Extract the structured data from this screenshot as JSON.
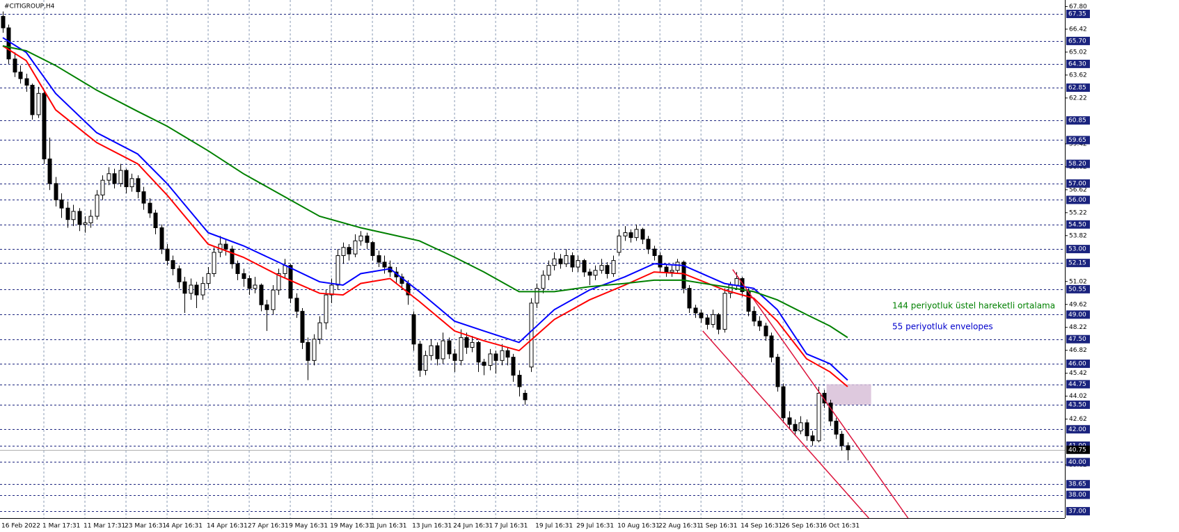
{
  "chart_data": {
    "type": "candlestick",
    "title": "#CITIGROUP,H4",
    "ylim": [
      36.58,
      68.2
    ],
    "yticks": [
      {
        "value": 67.8,
        "label": "67.80"
      },
      {
        "value": 66.42,
        "label": "66.42"
      },
      {
        "value": 65.02,
        "label": "65.02"
      },
      {
        "value": 63.62,
        "label": "63.62"
      },
      {
        "value": 62.22,
        "label": "62.22"
      },
      {
        "value": 59.42,
        "label": "59.42"
      },
      {
        "value": 58.02,
        "label": "58.02"
      },
      {
        "value": 56.62,
        "label": "56.62"
      },
      {
        "value": 55.22,
        "label": "55.22"
      },
      {
        "value": 53.82,
        "label": "53.82"
      },
      {
        "value": 51.02,
        "label": "51.02"
      },
      {
        "value": 49.62,
        "label": "49.62"
      },
      {
        "value": 48.22,
        "label": "48.22"
      },
      {
        "value": 46.82,
        "label": "46.82"
      },
      {
        "value": 45.42,
        "label": "45.42"
      },
      {
        "value": 44.02,
        "label": "44.02"
      },
      {
        "value": 42.62,
        "label": "42.62"
      },
      {
        "value": 39.82,
        "label": "39.82"
      }
    ],
    "levels": [
      {
        "value": 67.35,
        "label": "67.35"
      },
      {
        "value": 65.7,
        "label": "65.70"
      },
      {
        "value": 64.3,
        "label": "64.30"
      },
      {
        "value": 62.85,
        "label": "62.85"
      },
      {
        "value": 60.85,
        "label": "60.85"
      },
      {
        "value": 59.65,
        "label": "59.65"
      },
      {
        "value": 58.2,
        "label": "58.20"
      },
      {
        "value": 57.0,
        "label": "57.00"
      },
      {
        "value": 56.0,
        "label": "56.00"
      },
      {
        "value": 54.5,
        "label": "54.50"
      },
      {
        "value": 53.0,
        "label": "53.00"
      },
      {
        "value": 52.15,
        "label": "52.15"
      },
      {
        "value": 50.55,
        "label": "50.55"
      },
      {
        "value": 49.0,
        "label": "49.00"
      },
      {
        "value": 47.5,
        "label": "47.50"
      },
      {
        "value": 46.0,
        "label": "46.00"
      },
      {
        "value": 44.75,
        "label": "44.75"
      },
      {
        "value": 43.5,
        "label": "43.50"
      },
      {
        "value": 42.0,
        "label": "42.00"
      },
      {
        "value": 41.0,
        "label": "41.00"
      },
      {
        "value": 40.0,
        "label": "40.00"
      },
      {
        "value": 38.65,
        "label": "38.65"
      },
      {
        "value": 38.0,
        "label": "38.00"
      },
      {
        "value": 37.0,
        "label": "37.00"
      }
    ],
    "current_price": {
      "value": 40.75,
      "label": "40.75"
    },
    "grid": true,
    "categories": [
      "16 Feb 2022",
      null,
      null,
      null,
      null,
      null,
      null,
      "1 Mar 17:31",
      null,
      null,
      null,
      null,
      null,
      null,
      "11 Mar 17:31",
      null,
      null,
      null,
      null,
      null,
      null,
      "23 Mar 16:31",
      null,
      null,
      null,
      null,
      null,
      null,
      "4 Apr 16:31",
      null,
      null,
      null,
      null,
      null,
      null,
      "14 Apr 16:31",
      null,
      null,
      null,
      null,
      null,
      null,
      "27 Apr 16:31",
      null,
      null,
      null,
      null,
      null,
      null,
      "9 May 16:31",
      null,
      null,
      null,
      null,
      null,
      null,
      "19 May 16:31",
      null,
      null,
      null,
      null,
      null,
      null,
      "1 Jun 16:31",
      null,
      null,
      null,
      null,
      null,
      null,
      "13 Jun 16:31",
      null,
      null,
      null,
      null,
      null,
      null,
      "24 Jun 16:31",
      null,
      null,
      null,
      null,
      null,
      null,
      "7 Jul 16:31",
      null,
      null,
      null,
      null,
      null,
      null,
      "19 Jul 16:31",
      null,
      null,
      null,
      null,
      null,
      null,
      "29 Jul 16:31",
      null,
      null,
      null,
      null,
      null,
      null,
      "10 Aug 16:31",
      null,
      null,
      null,
      null,
      null,
      null,
      "22 Aug 16:31",
      null,
      null,
      null,
      null,
      null,
      null,
      "1 Sep 16:31",
      null,
      null,
      null,
      null,
      null,
      null,
      "14 Sep 16:31",
      null,
      null,
      null,
      null,
      null,
      null,
      "26 Sep 16:31",
      null,
      null,
      null,
      null,
      null,
      null,
      "6 Oct 16:31",
      null,
      null,
      null,
      null
    ],
    "candles": [
      [
        67.2,
        67.5,
        66.2,
        66.5
      ],
      [
        66.5,
        66.7,
        64.3,
        64.6
      ],
      [
        64.6,
        65.0,
        63.5,
        63.8
      ],
      [
        63.8,
        64.2,
        63.1,
        63.4
      ],
      [
        63.4,
        63.7,
        62.6,
        63.0
      ],
      [
        63.0,
        63.1,
        60.9,
        61.2
      ],
      [
        61.2,
        62.9,
        61.0,
        62.5
      ],
      [
        62.5,
        62.6,
        58.2,
        58.5
      ],
      [
        58.5,
        59.8,
        56.6,
        57.0
      ],
      [
        57.0,
        57.4,
        55.6,
        56.0
      ],
      [
        56.0,
        56.4,
        54.9,
        55.5
      ],
      [
        55.5,
        55.9,
        54.3,
        54.8
      ],
      [
        54.8,
        55.7,
        54.4,
        55.3
      ],
      [
        55.3,
        55.5,
        54.1,
        54.5
      ],
      [
        54.5,
        55.0,
        54.0,
        54.6
      ],
      [
        54.6,
        55.4,
        54.3,
        55.0
      ],
      [
        55.0,
        56.6,
        54.8,
        56.3
      ],
      [
        56.3,
        57.5,
        56.0,
        57.2
      ],
      [
        57.2,
        58.0,
        56.9,
        57.6
      ],
      [
        57.6,
        57.9,
        56.7,
        57.0
      ],
      [
        57.0,
        58.2,
        56.8,
        57.8
      ],
      [
        57.8,
        57.9,
        56.4,
        56.8
      ],
      [
        56.8,
        57.6,
        56.5,
        57.3
      ],
      [
        57.3,
        57.5,
        56.1,
        56.5
      ],
      [
        56.5,
        56.8,
        55.4,
        55.8
      ],
      [
        55.8,
        56.1,
        54.9,
        55.2
      ],
      [
        55.2,
        55.4,
        53.9,
        54.3
      ],
      [
        54.3,
        54.5,
        52.7,
        53.0
      ],
      [
        53.0,
        53.3,
        52.0,
        52.3
      ],
      [
        52.3,
        52.6,
        51.4,
        51.8
      ],
      [
        51.8,
        52.0,
        50.6,
        51.0
      ],
      [
        51.0,
        51.3,
        49.1,
        50.3
      ],
      [
        50.3,
        51.2,
        49.9,
        50.8
      ],
      [
        50.8,
        51.0,
        49.4,
        50.2
      ],
      [
        50.2,
        51.3,
        49.9,
        50.9
      ],
      [
        50.9,
        51.9,
        50.6,
        51.5
      ],
      [
        51.5,
        53.1,
        51.3,
        52.8
      ],
      [
        52.8,
        53.8,
        52.5,
        53.3
      ],
      [
        53.3,
        53.6,
        52.6,
        53.0
      ],
      [
        53.0,
        53.2,
        51.8,
        52.1
      ],
      [
        52.1,
        52.3,
        51.1,
        51.5
      ],
      [
        51.5,
        51.8,
        50.7,
        51.2
      ],
      [
        51.2,
        51.4,
        50.2,
        50.6
      ],
      [
        50.6,
        51.3,
        50.3,
        50.8
      ],
      [
        50.8,
        50.9,
        49.2,
        49.6
      ],
      [
        49.6,
        49.9,
        48.0,
        49.3
      ],
      [
        49.3,
        50.8,
        49.0,
        50.5
      ],
      [
        50.5,
        51.8,
        50.2,
        51.5
      ],
      [
        51.5,
        52.4,
        51.2,
        52.0
      ],
      [
        52.0,
        52.1,
        49.7,
        50.0
      ],
      [
        50.0,
        50.3,
        48.8,
        49.2
      ],
      [
        49.2,
        49.4,
        46.9,
        47.3
      ],
      [
        47.3,
        47.6,
        45.0,
        46.2
      ],
      [
        46.2,
        47.8,
        45.9,
        47.5
      ],
      [
        47.5,
        48.9,
        47.2,
        48.5
      ],
      [
        48.5,
        50.5,
        48.1,
        50.2
      ],
      [
        50.2,
        51.2,
        49.7,
        50.8
      ],
      [
        50.8,
        53.0,
        50.5,
        52.6
      ],
      [
        52.6,
        53.4,
        52.1,
        53.1
      ],
      [
        53.1,
        53.3,
        52.3,
        52.7
      ],
      [
        52.7,
        53.9,
        52.5,
        53.5
      ],
      [
        53.5,
        54.1,
        53.2,
        53.8
      ],
      [
        53.8,
        54.0,
        53.0,
        53.4
      ],
      [
        53.4,
        53.5,
        52.3,
        52.6
      ],
      [
        52.6,
        52.9,
        51.9,
        52.2
      ],
      [
        52.2,
        52.6,
        51.5,
        51.9
      ],
      [
        51.9,
        52.3,
        51.3,
        51.6
      ],
      [
        51.6,
        51.9,
        50.9,
        51.3
      ],
      [
        51.3,
        51.5,
        50.5,
        50.9
      ],
      [
        50.9,
        51.1,
        49.6,
        50.2
      ],
      [
        49.0,
        49.2,
        46.8,
        47.2
      ],
      [
        47.2,
        47.4,
        45.2,
        45.6
      ],
      [
        45.6,
        46.8,
        45.3,
        46.5
      ],
      [
        46.5,
        47.5,
        46.2,
        47.1
      ],
      [
        47.1,
        47.3,
        45.9,
        46.3
      ],
      [
        46.3,
        47.9,
        46.0,
        47.4
      ],
      [
        47.4,
        47.6,
        46.3,
        46.6
      ],
      [
        46.6,
        46.9,
        45.5,
        46.2
      ],
      [
        46.2,
        48.1,
        45.9,
        47.6
      ],
      [
        47.6,
        47.9,
        46.6,
        47.0
      ],
      [
        47.0,
        47.7,
        46.7,
        47.3
      ],
      [
        47.3,
        47.4,
        45.5,
        46.1
      ],
      [
        46.1,
        46.3,
        45.3,
        45.9
      ],
      [
        45.9,
        46.9,
        45.6,
        46.6
      ],
      [
        46.6,
        46.8,
        45.4,
        46.2
      ],
      [
        46.2,
        47.2,
        45.9,
        46.8
      ],
      [
        46.8,
        47.0,
        45.9,
        46.4
      ],
      [
        46.4,
        46.6,
        44.9,
        45.3
      ],
      [
        45.3,
        45.6,
        44.0,
        44.6
      ],
      [
        44.2,
        44.4,
        43.5,
        43.8
      ],
      [
        45.8,
        50.0,
        45.5,
        49.7
      ],
      [
        49.7,
        50.9,
        49.4,
        50.6
      ],
      [
        50.6,
        51.7,
        50.3,
        51.4
      ],
      [
        51.4,
        52.3,
        51.1,
        52.0
      ],
      [
        52.0,
        52.8,
        51.7,
        52.4
      ],
      [
        52.4,
        52.7,
        51.8,
        52.1
      ],
      [
        52.1,
        53.0,
        51.9,
        52.6
      ],
      [
        52.6,
        52.8,
        51.6,
        51.9
      ],
      [
        51.9,
        52.6,
        51.6,
        52.3
      ],
      [
        52.3,
        52.4,
        51.3,
        51.6
      ],
      [
        51.6,
        51.8,
        50.8,
        51.4
      ],
      [
        51.4,
        52.0,
        51.1,
        51.7
      ],
      [
        51.7,
        52.4,
        51.5,
        52.0
      ],
      [
        52.0,
        52.2,
        51.2,
        51.5
      ],
      [
        51.5,
        52.6,
        51.3,
        52.3
      ],
      [
        52.8,
        54.2,
        52.6,
        53.8
      ],
      [
        53.8,
        54.4,
        53.5,
        54.0
      ],
      [
        54.0,
        54.2,
        53.4,
        53.7
      ],
      [
        53.7,
        54.5,
        53.5,
        54.2
      ],
      [
        54.2,
        54.3,
        53.3,
        53.6
      ],
      [
        53.6,
        53.8,
        52.7,
        53.0
      ],
      [
        53.0,
        53.2,
        52.3,
        52.6
      ],
      [
        52.6,
        52.8,
        51.6,
        51.9
      ],
      [
        51.9,
        52.1,
        51.3,
        51.6
      ],
      [
        51.6,
        52.0,
        51.3,
        51.7
      ],
      [
        51.7,
        52.4,
        51.5,
        52.2
      ],
      [
        52.2,
        52.3,
        50.3,
        50.6
      ],
      [
        50.6,
        50.8,
        49.1,
        49.4
      ],
      [
        49.4,
        49.6,
        48.8,
        49.1
      ],
      [
        49.1,
        49.3,
        48.5,
        48.8
      ],
      [
        48.8,
        49.0,
        48.1,
        48.4
      ],
      [
        48.4,
        49.3,
        48.2,
        49.0
      ],
      [
        49.0,
        49.1,
        47.8,
        48.1
      ],
      [
        48.1,
        50.6,
        47.9,
        50.3
      ],
      [
        50.3,
        51.0,
        50.0,
        50.8
      ],
      [
        50.8,
        51.6,
        50.5,
        51.2
      ],
      [
        51.2,
        51.3,
        50.1,
        50.4
      ],
      [
        50.4,
        50.6,
        48.9,
        49.2
      ],
      [
        49.2,
        49.5,
        48.3,
        48.6
      ],
      [
        48.6,
        48.9,
        48.0,
        48.3
      ],
      [
        48.3,
        48.5,
        47.4,
        47.7
      ],
      [
        47.7,
        47.9,
        46.1,
        46.4
      ],
      [
        46.4,
        46.6,
        44.3,
        44.6
      ],
      [
        44.6,
        44.8,
        42.4,
        42.7
      ],
      [
        42.7,
        43.1,
        42.0,
        42.3
      ],
      [
        42.3,
        42.6,
        41.6,
        41.9
      ],
      [
        41.9,
        42.8,
        41.7,
        42.4
      ],
      [
        42.4,
        42.6,
        41.3,
        41.6
      ],
      [
        41.6,
        41.9,
        41.0,
        41.3
      ],
      [
        41.3,
        44.6,
        41.2,
        44.2
      ],
      [
        44.2,
        44.4,
        43.3,
        43.6
      ],
      [
        43.6,
        43.8,
        42.2,
        42.5
      ],
      [
        42.5,
        42.7,
        41.4,
        41.7
      ],
      [
        41.7,
        41.9,
        40.7,
        41.0
      ],
      [
        41.0,
        41.2,
        40.1,
        40.75
      ]
    ],
    "series": [
      {
        "color": "#0000ff",
        "x": [
          0,
          4,
          9,
          16,
          23,
          28,
          35,
          41,
          47,
          54,
          58,
          61,
          66,
          71,
          77,
          82,
          88,
          94,
          100,
          106,
          111,
          116,
          123,
          128,
          132,
          137,
          141,
          144
        ],
        "values": [
          65.9,
          65.0,
          62.5,
          60.1,
          58.8,
          57.0,
          54.0,
          53.2,
          52.2,
          51.0,
          50.8,
          51.5,
          51.8,
          50.4,
          48.6,
          48.0,
          47.3,
          49.3,
          50.5,
          51.3,
          52.1,
          52.0,
          50.9,
          50.6,
          49.3,
          46.6,
          46.0,
          45.0
        ]
      },
      {
        "color": "#ff0000",
        "x": [
          0,
          4,
          9,
          16,
          23,
          28,
          35,
          41,
          47,
          54,
          58,
          61,
          66,
          71,
          77,
          82,
          88,
          94,
          100,
          106,
          111,
          116,
          123,
          128,
          132,
          137,
          141,
          144
        ],
        "values": [
          65.4,
          64.5,
          61.5,
          59.5,
          58.2,
          56.3,
          53.3,
          52.5,
          51.4,
          50.3,
          50.2,
          50.9,
          51.2,
          49.8,
          48.0,
          47.4,
          46.8,
          48.7,
          49.9,
          50.8,
          51.6,
          51.5,
          50.5,
          50.0,
          48.6,
          46.3,
          45.5,
          44.6
        ]
      },
      {
        "color": "#008000",
        "x": [
          0,
          4,
          9,
          16,
          23,
          28,
          35,
          41,
          47,
          54,
          58,
          61,
          66,
          71,
          77,
          82,
          88,
          94,
          100,
          106,
          111,
          116,
          123,
          128,
          132,
          137,
          141,
          144
        ],
        "values": [
          65.4,
          65.1,
          64.2,
          62.7,
          61.4,
          60.5,
          59.0,
          57.6,
          56.4,
          55.0,
          54.6,
          54.3,
          53.9,
          53.5,
          52.5,
          51.6,
          50.4,
          50.4,
          50.7,
          50.9,
          51.1,
          51.1,
          50.7,
          50.4,
          49.9,
          49.0,
          48.3,
          47.6
        ]
      }
    ],
    "trendlines": [
      {
        "color": "#dc143c",
        "x": [
          124.4,
          154.3
        ],
        "values": [
          51.75,
          36.58
        ]
      },
      {
        "color": "#dc143c",
        "x": [
          119.3,
          147.6
        ],
        "values": [
          48.0,
          36.58
        ]
      }
    ],
    "zone": {
      "color": "#d8bfd8",
      "x": [
        140.4,
        148
      ],
      "values": [
        44.75,
        43.5
      ]
    },
    "annotations": [
      {
        "text": "144 periyotluk üstel hareketli ortalama",
        "color": "#008000"
      },
      {
        "text": "55 periyotluk envelopes",
        "color": "#0000cc"
      }
    ]
  }
}
